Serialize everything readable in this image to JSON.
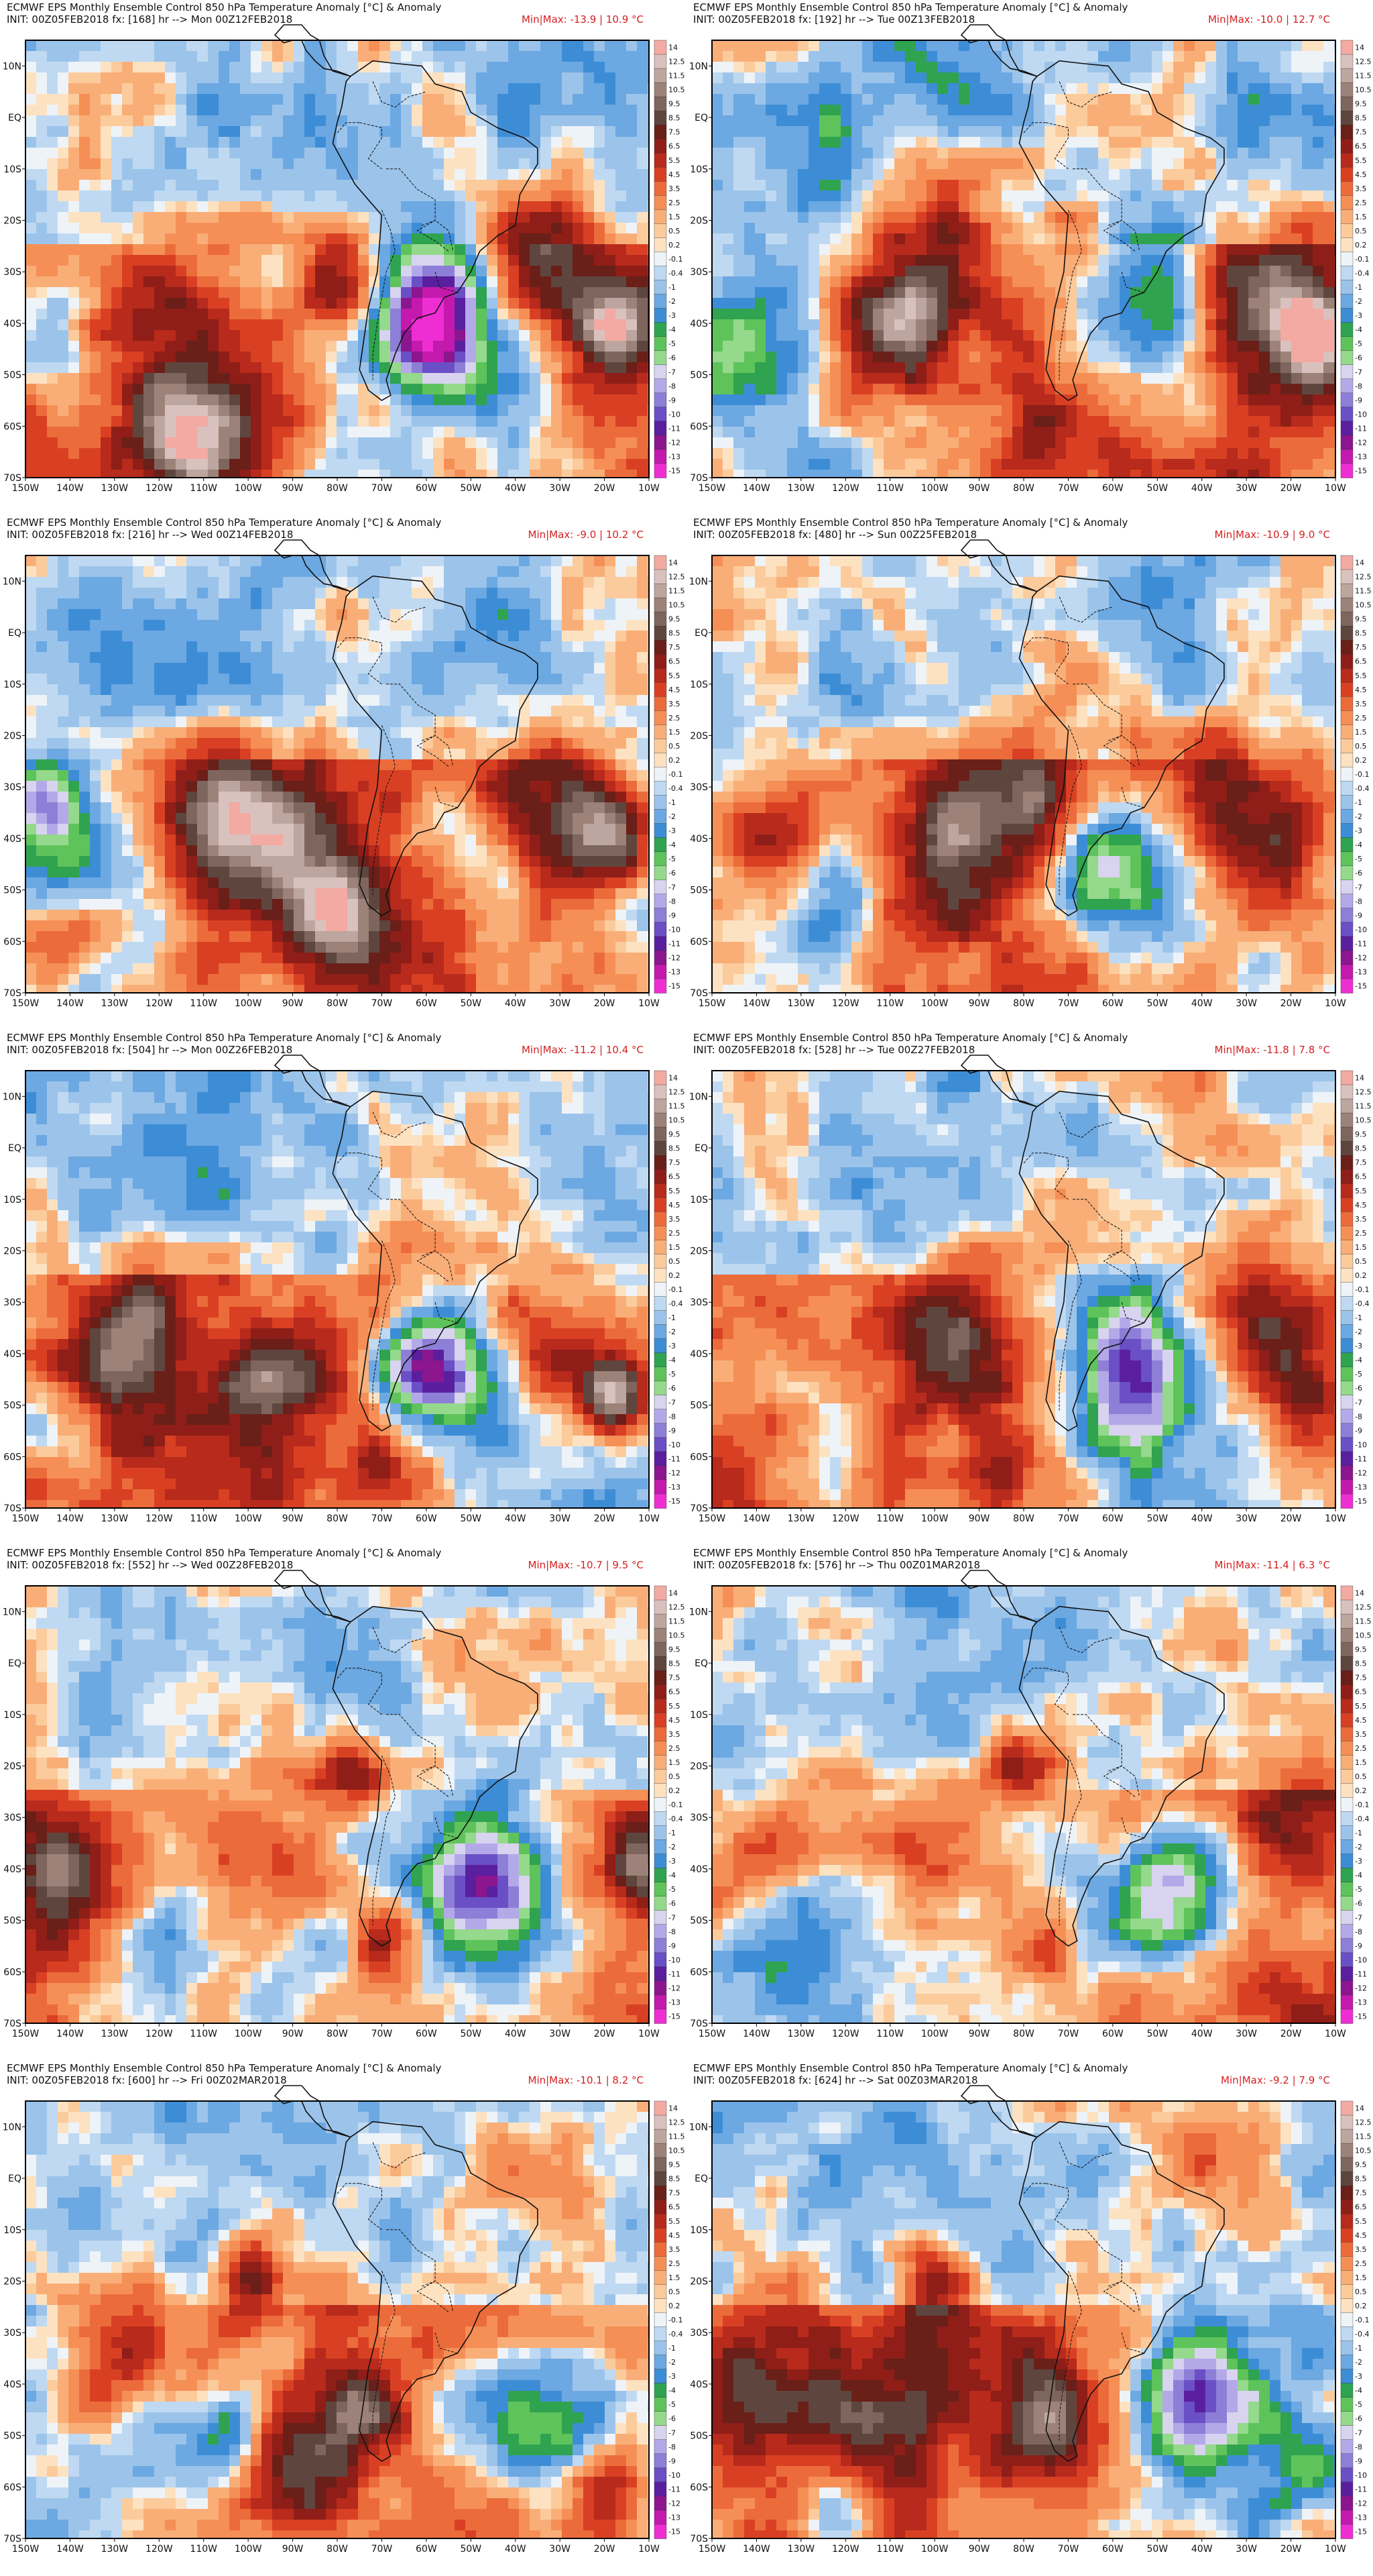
{
  "title": "ECMWF EPS Monthly Ensemble Control 850 hPa Temperature Anomaly [°C] & Anomaly",
  "init": "INIT: 00Z05FEB2018",
  "x_ticks": [
    "150W",
    "140W",
    "130W",
    "120W",
    "110W",
    "100W",
    "90W",
    "80W",
    "70W",
    "60W",
    "50W",
    "40W",
    "30W",
    "20W",
    "10W"
  ],
  "y_ticks": [
    "10N",
    "EQ",
    "10S",
    "20S",
    "30S",
    "40S",
    "50S",
    "60S",
    "70S"
  ],
  "colorbar": {
    "labels": [
      "14",
      "12.5",
      "11.5",
      "10.5",
      "9.5",
      "8.5",
      "7.5",
      "6.5",
      "5.5",
      "4.5",
      "3.5",
      "2.5",
      "1.5",
      "0.5",
      "0.2",
      "-0.1",
      "-0.4",
      "-1",
      "-2",
      "-3",
      "-4",
      "-5",
      "-6",
      "-7",
      "-8",
      "-9",
      "-10",
      "-11",
      "-12",
      "-13",
      "-15"
    ],
    "colors": [
      "#f2aaa2",
      "#d9c2bd",
      "#bca69f",
      "#9d8279",
      "#7e665e",
      "#5e463f",
      "#6a1f19",
      "#8e1e17",
      "#b72a1c",
      "#d94023",
      "#ec6b3b",
      "#f58f56",
      "#f9ae78",
      "#fbcb9c",
      "#fde2c1",
      "#eef3f8",
      "#bfd9f2",
      "#9cc4ea",
      "#6ca8e2",
      "#3d8dd6",
      "#2fa34f",
      "#5fc35b",
      "#95d98c",
      "#d8d3ef",
      "#b4a9e8",
      "#8d7ed7",
      "#6a4fc6",
      "#5a1f9f",
      "#8b168e",
      "#c31aad",
      "#ee2ed2"
    ]
  },
  "panels": [
    {
      "fx": "fx: [168] hr --> Mon 00Z12FEB2018",
      "minmax": "Min|Max: -13.9 | 10.9 °C",
      "seed": 11,
      "blobs": [
        {
          "lon": -60,
          "lat": -42,
          "r": 11,
          "v": -12
        },
        {
          "lon": -55,
          "lat": -35,
          "r": 14,
          "v": -6
        },
        {
          "lon": -100,
          "lat": -55,
          "r": 22,
          "v": 6
        },
        {
          "lon": -120,
          "lat": -38,
          "r": 14,
          "v": 5
        },
        {
          "lon": -78,
          "lat": -30,
          "r": 10,
          "v": 6
        },
        {
          "lon": -35,
          "lat": -28,
          "r": 15,
          "v": 6
        },
        {
          "lon": -18,
          "lat": -40,
          "r": 10,
          "v": 9
        },
        {
          "lon": -145,
          "lat": -45,
          "r": 12,
          "v": -6
        },
        {
          "lon": -40,
          "lat": -55,
          "r": 12,
          "v": -3
        },
        {
          "lon": -100,
          "lat": 0,
          "r": 20,
          "v": -2
        },
        {
          "lon": -30,
          "lat": 5,
          "r": 14,
          "v": -2
        },
        {
          "lon": -115,
          "lat": -64,
          "r": 12,
          "v": 8
        }
      ]
    },
    {
      "fx": "fx: [192] hr --> Tue 00Z13FEB2018",
      "minmax": "Min|Max: -10.0 | 12.7 °C",
      "seed": 23,
      "blobs": [
        {
          "lon": -108,
          "lat": -40,
          "r": 14,
          "v": 11
        },
        {
          "lon": -95,
          "lat": -30,
          "r": 18,
          "v": 5
        },
        {
          "lon": -50,
          "lat": -32,
          "r": 11,
          "v": -7
        },
        {
          "lon": -55,
          "lat": -42,
          "r": 14,
          "v": -4
        },
        {
          "lon": -145,
          "lat": -45,
          "r": 14,
          "v": -8
        },
        {
          "lon": -25,
          "lat": -35,
          "r": 16,
          "v": 6
        },
        {
          "lon": -15,
          "lat": -42,
          "r": 8,
          "v": 9
        },
        {
          "lon": -75,
          "lat": -60,
          "r": 14,
          "v": 5
        },
        {
          "lon": -100,
          "lat": 5,
          "r": 20,
          "v": -2
        },
        {
          "lon": -125,
          "lat": -5,
          "r": 12,
          "v": -3
        },
        {
          "lon": -30,
          "lat": 0,
          "r": 14,
          "v": -2
        }
      ]
    },
    {
      "fx": "fx: [216] hr --> Wed 00Z14FEB2018",
      "minmax": "Min|Max: -9.0 | 10.2 °C",
      "seed": 37,
      "blobs": [
        {
          "lon": -105,
          "lat": -37,
          "r": 14,
          "v": 10
        },
        {
          "lon": -90,
          "lat": -45,
          "r": 14,
          "v": 6
        },
        {
          "lon": -20,
          "lat": -38,
          "r": 10,
          "v": 8
        },
        {
          "lon": -35,
          "lat": -32,
          "r": 14,
          "v": 5
        },
        {
          "lon": -145,
          "lat": -33,
          "r": 9,
          "v": -7
        },
        {
          "lon": -138,
          "lat": -45,
          "r": 10,
          "v": -5
        },
        {
          "lon": -55,
          "lat": -38,
          "r": 9,
          "v": -4
        },
        {
          "lon": -45,
          "lat": -45,
          "r": 8,
          "v": -5
        },
        {
          "lon": -145,
          "lat": -60,
          "r": 10,
          "v": 6
        },
        {
          "lon": -110,
          "lat": 0,
          "r": 22,
          "v": -2
        },
        {
          "lon": -80,
          "lat": -55,
          "r": 12,
          "v": 6
        },
        {
          "lon": -40,
          "lat": 5,
          "r": 14,
          "v": -2
        }
      ]
    },
    {
      "fx": "fx: [480] hr --> Sun 00Z25FEB2018",
      "minmax": "Min|Max: -10.9 | 9.0 °C",
      "seed": 41,
      "blobs": [
        {
          "lon": -62,
          "lat": -45,
          "r": 11,
          "v": -9
        },
        {
          "lon": -50,
          "lat": -55,
          "r": 14,
          "v": -4
        },
        {
          "lon": -125,
          "lat": -55,
          "r": 14,
          "v": -4
        },
        {
          "lon": -135,
          "lat": -42,
          "r": 10,
          "v": 7
        },
        {
          "lon": -95,
          "lat": -40,
          "r": 14,
          "v": 7
        },
        {
          "lon": -35,
          "lat": -28,
          "r": 12,
          "v": 6
        },
        {
          "lon": -25,
          "lat": -42,
          "r": 12,
          "v": 7
        },
        {
          "lon": -75,
          "lat": -32,
          "r": 8,
          "v": 5
        },
        {
          "lon": -50,
          "lat": 5,
          "r": 14,
          "v": -3
        },
        {
          "lon": -120,
          "lat": -10,
          "r": 14,
          "v": -2
        },
        {
          "lon": -70,
          "lat": -8,
          "r": 12,
          "v": 2
        }
      ]
    },
    {
      "fx": "fx: [504] hr --> Mon 00Z26FEB2018",
      "minmax": "Min|Max: -11.2 | 10.4 °C",
      "seed": 53,
      "blobs": [
        {
          "lon": -58,
          "lat": -42,
          "r": 10,
          "v": -10
        },
        {
          "lon": -55,
          "lat": -48,
          "r": 14,
          "v": -5
        },
        {
          "lon": -130,
          "lat": -40,
          "r": 14,
          "v": 7
        },
        {
          "lon": -95,
          "lat": -48,
          "r": 14,
          "v": 6
        },
        {
          "lon": -30,
          "lat": -40,
          "r": 14,
          "v": 7
        },
        {
          "lon": -18,
          "lat": -48,
          "r": 7,
          "v": 10
        },
        {
          "lon": -140,
          "lat": -55,
          "r": 10,
          "v": -4
        },
        {
          "lon": -70,
          "lat": -62,
          "r": 10,
          "v": 6
        },
        {
          "lon": -100,
          "lat": 5,
          "r": 22,
          "v": -2
        },
        {
          "lon": -45,
          "lat": 5,
          "r": 12,
          "v": 2
        },
        {
          "lon": -60,
          "lat": -15,
          "r": 10,
          "v": 3
        }
      ]
    },
    {
      "fx": "fx: [528] hr --> Tue 00Z27FEB2018",
      "minmax": "Min|Max: -11.8 | 7.8 °C",
      "seed": 61,
      "blobs": [
        {
          "lon": -58,
          "lat": -42,
          "r": 10,
          "v": -9
        },
        {
          "lon": -50,
          "lat": -48,
          "r": 14,
          "v": -5
        },
        {
          "lon": -125,
          "lat": -55,
          "r": 12,
          "v": -4
        },
        {
          "lon": -95,
          "lat": -40,
          "r": 16,
          "v": 6
        },
        {
          "lon": -25,
          "lat": -32,
          "r": 16,
          "v": 6
        },
        {
          "lon": -18,
          "lat": -48,
          "r": 8,
          "v": 5
        },
        {
          "lon": -85,
          "lat": -62,
          "r": 10,
          "v": 5
        },
        {
          "lon": -70,
          "lat": -15,
          "r": 10,
          "v": 2
        },
        {
          "lon": -100,
          "lat": 0,
          "r": 20,
          "v": -2
        },
        {
          "lon": -40,
          "lat": 0,
          "r": 12,
          "v": 2
        }
      ]
    },
    {
      "fx": "fx: [552] hr --> Wed 00Z28FEB2018",
      "minmax": "Min|Max: -10.7 | 9.5 °C",
      "seed": 71,
      "blobs": [
        {
          "lon": -45,
          "lat": -45,
          "r": 14,
          "v": -8
        },
        {
          "lon": -50,
          "lat": -38,
          "r": 12,
          "v": -4
        },
        {
          "lon": -120,
          "lat": -55,
          "r": 14,
          "v": -4
        },
        {
          "lon": -140,
          "lat": -42,
          "r": 12,
          "v": 6
        },
        {
          "lon": -95,
          "lat": -35,
          "r": 14,
          "v": 5
        },
        {
          "lon": -12,
          "lat": -40,
          "r": 8,
          "v": 8
        },
        {
          "lon": -75,
          "lat": -22,
          "r": 8,
          "v": 5
        },
        {
          "lon": -70,
          "lat": -55,
          "r": 8,
          "v": 7
        },
        {
          "lon": -100,
          "lat": 5,
          "r": 20,
          "v": -2
        },
        {
          "lon": -40,
          "lat": 5,
          "r": 12,
          "v": 2
        }
      ]
    },
    {
      "fx": "fx: [576] hr --> Thu 00Z01MAR2018",
      "minmax": "Min|Max: -11.4 | 6.3 °C",
      "seed": 83,
      "blobs": [
        {
          "lon": -52,
          "lat": -48,
          "r": 12,
          "v": -9
        },
        {
          "lon": -40,
          "lat": -40,
          "r": 14,
          "v": -5
        },
        {
          "lon": -135,
          "lat": -55,
          "r": 12,
          "v": -5
        },
        {
          "lon": -140,
          "lat": -40,
          "r": 12,
          "v": 5
        },
        {
          "lon": -100,
          "lat": -38,
          "r": 16,
          "v": 5
        },
        {
          "lon": -80,
          "lat": -20,
          "r": 8,
          "v": 5
        },
        {
          "lon": -20,
          "lat": -32,
          "r": 12,
          "v": 4
        },
        {
          "lon": -75,
          "lat": -55,
          "r": 8,
          "v": 4
        },
        {
          "lon": -100,
          "lat": 5,
          "r": 20,
          "v": -2
        },
        {
          "lon": -40,
          "lat": 5,
          "r": 12,
          "v": 2
        }
      ]
    },
    {
      "fx": "fx: [600] hr --> Fri 00Z02MAR2018",
      "minmax": "Min|Max: -10.1 | 8.2 °C",
      "seed": 97,
      "blobs": [
        {
          "lon": -30,
          "lat": -48,
          "r": 12,
          "v": -7
        },
        {
          "lon": -45,
          "lat": -45,
          "r": 16,
          "v": -4
        },
        {
          "lon": -105,
          "lat": -48,
          "r": 8,
          "v": -6
        },
        {
          "lon": -120,
          "lat": -50,
          "r": 14,
          "v": -3
        },
        {
          "lon": -130,
          "lat": -35,
          "r": 14,
          "v": 6
        },
        {
          "lon": -100,
          "lat": -20,
          "r": 8,
          "v": 8
        },
        {
          "lon": -75,
          "lat": -45,
          "r": 8,
          "v": 7
        },
        {
          "lon": -90,
          "lat": -55,
          "r": 12,
          "v": 6
        },
        {
          "lon": -20,
          "lat": -60,
          "r": 10,
          "v": 5
        },
        {
          "lon": -100,
          "lat": 5,
          "r": 20,
          "v": -2
        },
        {
          "lon": -40,
          "lat": 5,
          "r": 12,
          "v": 2
        }
      ]
    },
    {
      "fx": "fx: [624] hr --> Sat 00Z03MAR2018",
      "minmax": "Min|Max: -9.2 | 7.9 °C",
      "seed": 109,
      "blobs": [
        {
          "lon": -45,
          "lat": -45,
          "r": 12,
          "v": -7
        },
        {
          "lon": -35,
          "lat": -40,
          "r": 14,
          "v": -4
        },
        {
          "lon": -140,
          "lat": -40,
          "r": 16,
          "v": 6
        },
        {
          "lon": -110,
          "lat": -50,
          "r": 14,
          "v": 6
        },
        {
          "lon": -75,
          "lat": -45,
          "r": 10,
          "v": 7
        },
        {
          "lon": -100,
          "lat": -20,
          "r": 8,
          "v": 7
        },
        {
          "lon": -120,
          "lat": -62,
          "r": 12,
          "v": -4
        },
        {
          "lon": -20,
          "lat": -55,
          "r": 12,
          "v": -3
        },
        {
          "lon": -100,
          "lat": 5,
          "r": 20,
          "v": -2
        },
        {
          "lon": -40,
          "lat": 5,
          "r": 12,
          "v": 2
        }
      ]
    }
  ]
}
